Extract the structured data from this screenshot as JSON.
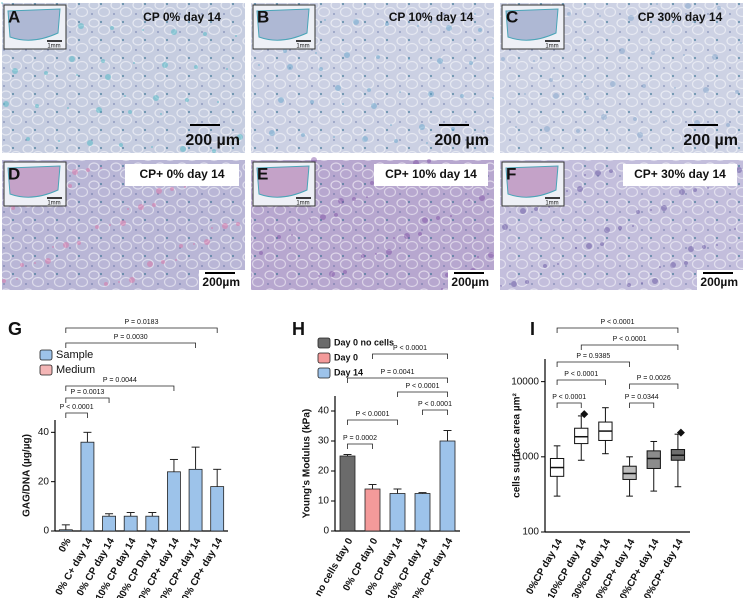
{
  "panels": [
    {
      "letter": "A",
      "caption": "CP 0% day 14",
      "scale": "200 µm",
      "inset_scale": "1mm"
    },
    {
      "letter": "B",
      "caption": "CP 10% day 14",
      "scale": "200 µm",
      "inset_scale": "1mm"
    },
    {
      "letter": "C",
      "caption": "CP 30% day 14",
      "scale": "200 µm",
      "inset_scale": "1mm"
    },
    {
      "letter": "D",
      "caption": "CP+ 0% day 14",
      "scale": "200µm",
      "inset_scale": "1mm"
    },
    {
      "letter": "E",
      "caption": "CP+ 10% day 14",
      "scale": "200µm",
      "inset_scale": "1mm"
    },
    {
      "letter": "F",
      "caption": "CP+ 30% day 14",
      "scale": "200µm",
      "inset_scale": "1mm"
    }
  ],
  "chart_data": [
    {
      "type": "bar",
      "label": "G",
      "y_label": "GAG/DNA (µg/µg)",
      "categories": [
        "0%",
        "0% C+ day 14",
        "0% CP day 14",
        "10% CP day 14",
        "30% CP Day 14",
        "0% CP+ day 14",
        "10% CP+ day 14",
        "30% CP+ day 14"
      ],
      "series": [
        {
          "name": "Sample",
          "color": "#9dc3ea",
          "values": [
            0.5,
            36,
            6,
            6,
            6,
            24,
            25,
            18
          ],
          "errors": [
            2,
            4,
            1,
            1.5,
            1.5,
            5,
            9,
            7
          ]
        },
        {
          "name": "Medium",
          "color": "#f4b6b6",
          "values": [
            null,
            null,
            null,
            null,
            null,
            null,
            null,
            null
          ]
        }
      ],
      "ylim": [
        0,
        45
      ],
      "yticks": [
        0,
        20,
        40
      ],
      "annotations": [
        "P = 0.0183",
        "P = 0.0030",
        "P = 0.0044",
        "P = 0.0013",
        "P < 0.0001"
      ]
    },
    {
      "type": "bar",
      "label": "H",
      "y_label": "Young's Modulus (kPa)",
      "categories": [
        "no cells day 0",
        "0% CP day 0",
        "0% CP day 14",
        "10% CP day 14",
        "0% CP+ day 14"
      ],
      "series": [
        {
          "name": "Day 0 no cells",
          "color": "#6b6b6b",
          "values": [
            25,
            null,
            null,
            null,
            null
          ],
          "errors": [
            0.5,
            null,
            null,
            null,
            null
          ]
        },
        {
          "name": "Day 0",
          "color": "#f49a9a",
          "values": [
            null,
            14,
            null,
            null,
            null
          ],
          "errors": [
            null,
            1.5,
            null,
            null,
            null
          ]
        },
        {
          "name": "Day 14",
          "color": "#9dc3ea",
          "values": [
            null,
            null,
            12.5,
            12.5,
            30
          ],
          "errors": [
            null,
            null,
            1.5,
            0.3,
            3.5
          ]
        }
      ],
      "ylim": [
        0,
        45
      ],
      "yticks": [
        0,
        10,
        20,
        30,
        40
      ],
      "annotations": [
        "P < 0.0001",
        "P = 0.0041",
        "P < 0.0001",
        "P < 0.0001",
        "P < 0.0001",
        "P = 0.0002"
      ]
    },
    {
      "type": "box",
      "label": "I",
      "y_label": "cells surface area µm²",
      "log_y": true,
      "categories": [
        "0%CP day 14",
        "10%CP day 14",
        "30%CP day 14",
        "0%CP+ day 14",
        "10%CP+ day 14",
        "30%CP+ day 14"
      ],
      "colors": [
        "#ffffff",
        "#ffffff",
        "#ffffff",
        "#bdbdbd",
        "#8c8c8c",
        "#6e6e6e"
      ],
      "boxes": [
        {
          "whislo": 300,
          "q1": 550,
          "med": 720,
          "q3": 950,
          "whishi": 1400
        },
        {
          "whislo": 900,
          "q1": 1500,
          "med": 1850,
          "q3": 2400,
          "whishi": 3500
        },
        {
          "whislo": 1100,
          "q1": 1650,
          "med": 2200,
          "q3": 2900,
          "whishi": 4500
        },
        {
          "whislo": 300,
          "q1": 500,
          "med": 600,
          "q3": 750,
          "whishi": 1000
        },
        {
          "whislo": 350,
          "q1": 700,
          "med": 950,
          "q3": 1200,
          "whishi": 1600
        },
        {
          "whislo": 400,
          "q1": 900,
          "med": 1050,
          "q3": 1250,
          "whishi": 2000
        }
      ],
      "fliers": [
        [],
        [
          3700
        ],
        [],
        [],
        [],
        [
          2100
        ]
      ],
      "ylim": [
        100,
        20000
      ],
      "yticks": [
        100,
        1000,
        10000
      ],
      "annotations": [
        "P < 0.0001",
        "P < 0.0001",
        "P = 0.9385",
        "P < 0.0001",
        "P = 0.0026",
        "P < 0.0001",
        "P = 0.0344"
      ]
    }
  ]
}
